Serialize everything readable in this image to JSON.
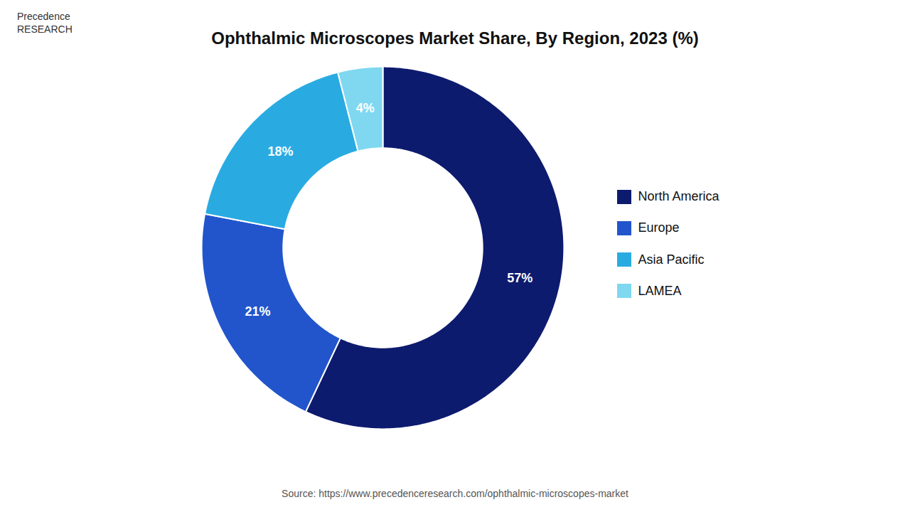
{
  "chart_data": {
    "type": "pie",
    "title": "Ophthalmic Microscopes Market Share, By Region, 2023 (%)",
    "categories": [
      "North America",
      "Europe",
      "Asia Pacific",
      "LAMEA"
    ],
    "values": [
      57,
      21,
      18,
      4
    ],
    "value_labels": [
      "57%",
      "21%",
      "18%",
      "4%"
    ],
    "colors": [
      "#0d1b6e",
      "#2255cc",
      "#29abe2",
      "#7fd8f0"
    ],
    "data_labels": true,
    "legend": "right",
    "annotations": [
      "Precedence\nRESEARCH",
      "Source: https://www.precedenceresearch.com/ophthalmic-microscopes-market"
    ]
  }
}
